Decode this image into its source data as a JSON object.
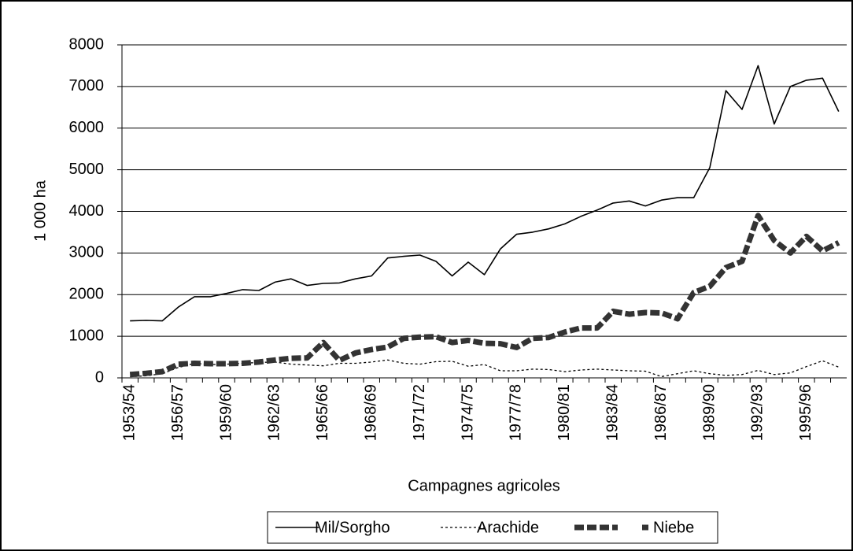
{
  "chart_data": {
    "type": "line",
    "y_label": "1 000 ha",
    "x_label": "Campagnes agricoles",
    "categories": [
      "1953/54",
      null,
      null,
      "1956/57",
      null,
      null,
      "1959/60",
      null,
      null,
      "1962/63",
      null,
      null,
      "1965/66",
      null,
      null,
      "1968/69",
      null,
      null,
      "1971/72",
      null,
      null,
      "1974/75",
      null,
      null,
      "1977/78",
      null,
      null,
      "1980/81",
      null,
      null,
      "1983/84",
      null,
      null,
      "1986/87",
      null,
      null,
      "1989/90",
      null,
      null,
      "1992/93",
      null,
      null,
      "1995/96",
      null,
      null
    ],
    "series": [
      {
        "name": "Mil/Sorgho",
        "color": "#000000",
        "line_style": "solid",
        "values": [
          1370,
          1380,
          1370,
          1700,
          1950,
          1950,
          2030,
          2120,
          2100,
          2300,
          2380,
          2220,
          2270,
          2280,
          2380,
          2450,
          2880,
          2920,
          2950,
          2800,
          2450,
          2780,
          2480,
          3100,
          3450,
          3500,
          3580,
          3700,
          3880,
          4030,
          4200,
          4250,
          4130,
          4270,
          4330,
          4330,
          5050,
          6900,
          6450,
          7500,
          6100,
          7000,
          7150,
          7200,
          6400
        ]
      },
      {
        "name": "Arachide",
        "color": "#000000",
        "line_style": "dotted",
        "values": [
          30,
          50,
          100,
          250,
          350,
          320,
          330,
          350,
          370,
          380,
          330,
          310,
          290,
          350,
          350,
          380,
          430,
          350,
          330,
          390,
          400,
          280,
          320,
          170,
          170,
          210,
          200,
          150,
          190,
          210,
          190,
          170,
          160,
          30,
          100,
          170,
          100,
          60,
          80,
          180,
          80,
          120,
          270,
          410,
          260
        ]
      },
      {
        "name": "Niebe",
        "color": "#333333",
        "line_style": "thick-dashed",
        "values": [
          80,
          110,
          150,
          330,
          350,
          340,
          340,
          350,
          380,
          430,
          470,
          480,
          850,
          420,
          600,
          680,
          740,
          950,
          980,
          990,
          850,
          900,
          830,
          820,
          730,
          950,
          970,
          1100,
          1200,
          1200,
          1600,
          1530,
          1570,
          1560,
          1420,
          2050,
          2200,
          2650,
          2800,
          3900,
          3300,
          3000,
          3400,
          3050,
          3250
        ]
      }
    ],
    "ylim": [
      0,
      8000
    ],
    "yticks": [
      0,
      1000,
      2000,
      3000,
      4000,
      5000,
      6000,
      7000,
      8000
    ],
    "grid": true,
    "legend": "bottom"
  }
}
